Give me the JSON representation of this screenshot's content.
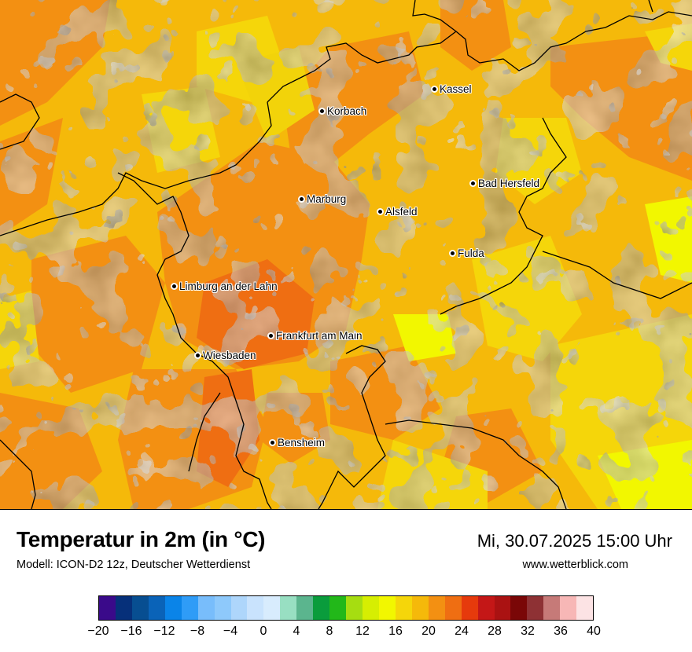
{
  "map": {
    "cities": [
      {
        "name": "Kassel",
        "key": "kassel"
      },
      {
        "name": "Korbach",
        "key": "korbach"
      },
      {
        "name": "Bad Hersfeld",
        "key": "bad-hersfeld"
      },
      {
        "name": "Marburg",
        "key": "marburg"
      },
      {
        "name": "Alsfeld",
        "key": "alsfeld"
      },
      {
        "name": "Fulda",
        "key": "fulda"
      },
      {
        "name": "Limburg an der Lahn",
        "key": "limburg"
      },
      {
        "name": "Frankfurt am Main",
        "key": "frankfurt"
      },
      {
        "name": "Wiesbaden",
        "key": "wiesbaden"
      },
      {
        "name": "Bensheim",
        "key": "bensheim"
      }
    ]
  },
  "header": {
    "title": "Temperatur in 2m (in °C)",
    "subtitle": "Modell: ICON-D2 12z, Deutscher Wetterdienst",
    "datetime": "Mi, 30.07.2025 15:00 Uhr",
    "website": "www.wetterblick.com"
  },
  "legend": {
    "colors": [
      "#3a0a8a",
      "#06307a",
      "#074e91",
      "#0a63b8",
      "#0a84e8",
      "#2f9cf7",
      "#78bdfb",
      "#8ec9fb",
      "#aed6fb",
      "#c9e3fd",
      "#d8ecfd",
      "#98dfc2",
      "#5bb58e",
      "#0a9c3c",
      "#22b819",
      "#a6dd11",
      "#d6ee02",
      "#f2f700",
      "#f5d60a",
      "#f5b90a",
      "#f39012",
      "#ef6e12",
      "#e63a0c",
      "#c41717",
      "#aa1212",
      "#7a0707",
      "#8e3134",
      "#c67a78",
      "#f7b7b6",
      "#fce3e4"
    ],
    "ticks": [
      "−20",
      "−16",
      "−12",
      "−8",
      "−4",
      "0",
      "4",
      "8",
      "12",
      "16",
      "20",
      "24",
      "28",
      "32",
      "36",
      "40"
    ]
  }
}
